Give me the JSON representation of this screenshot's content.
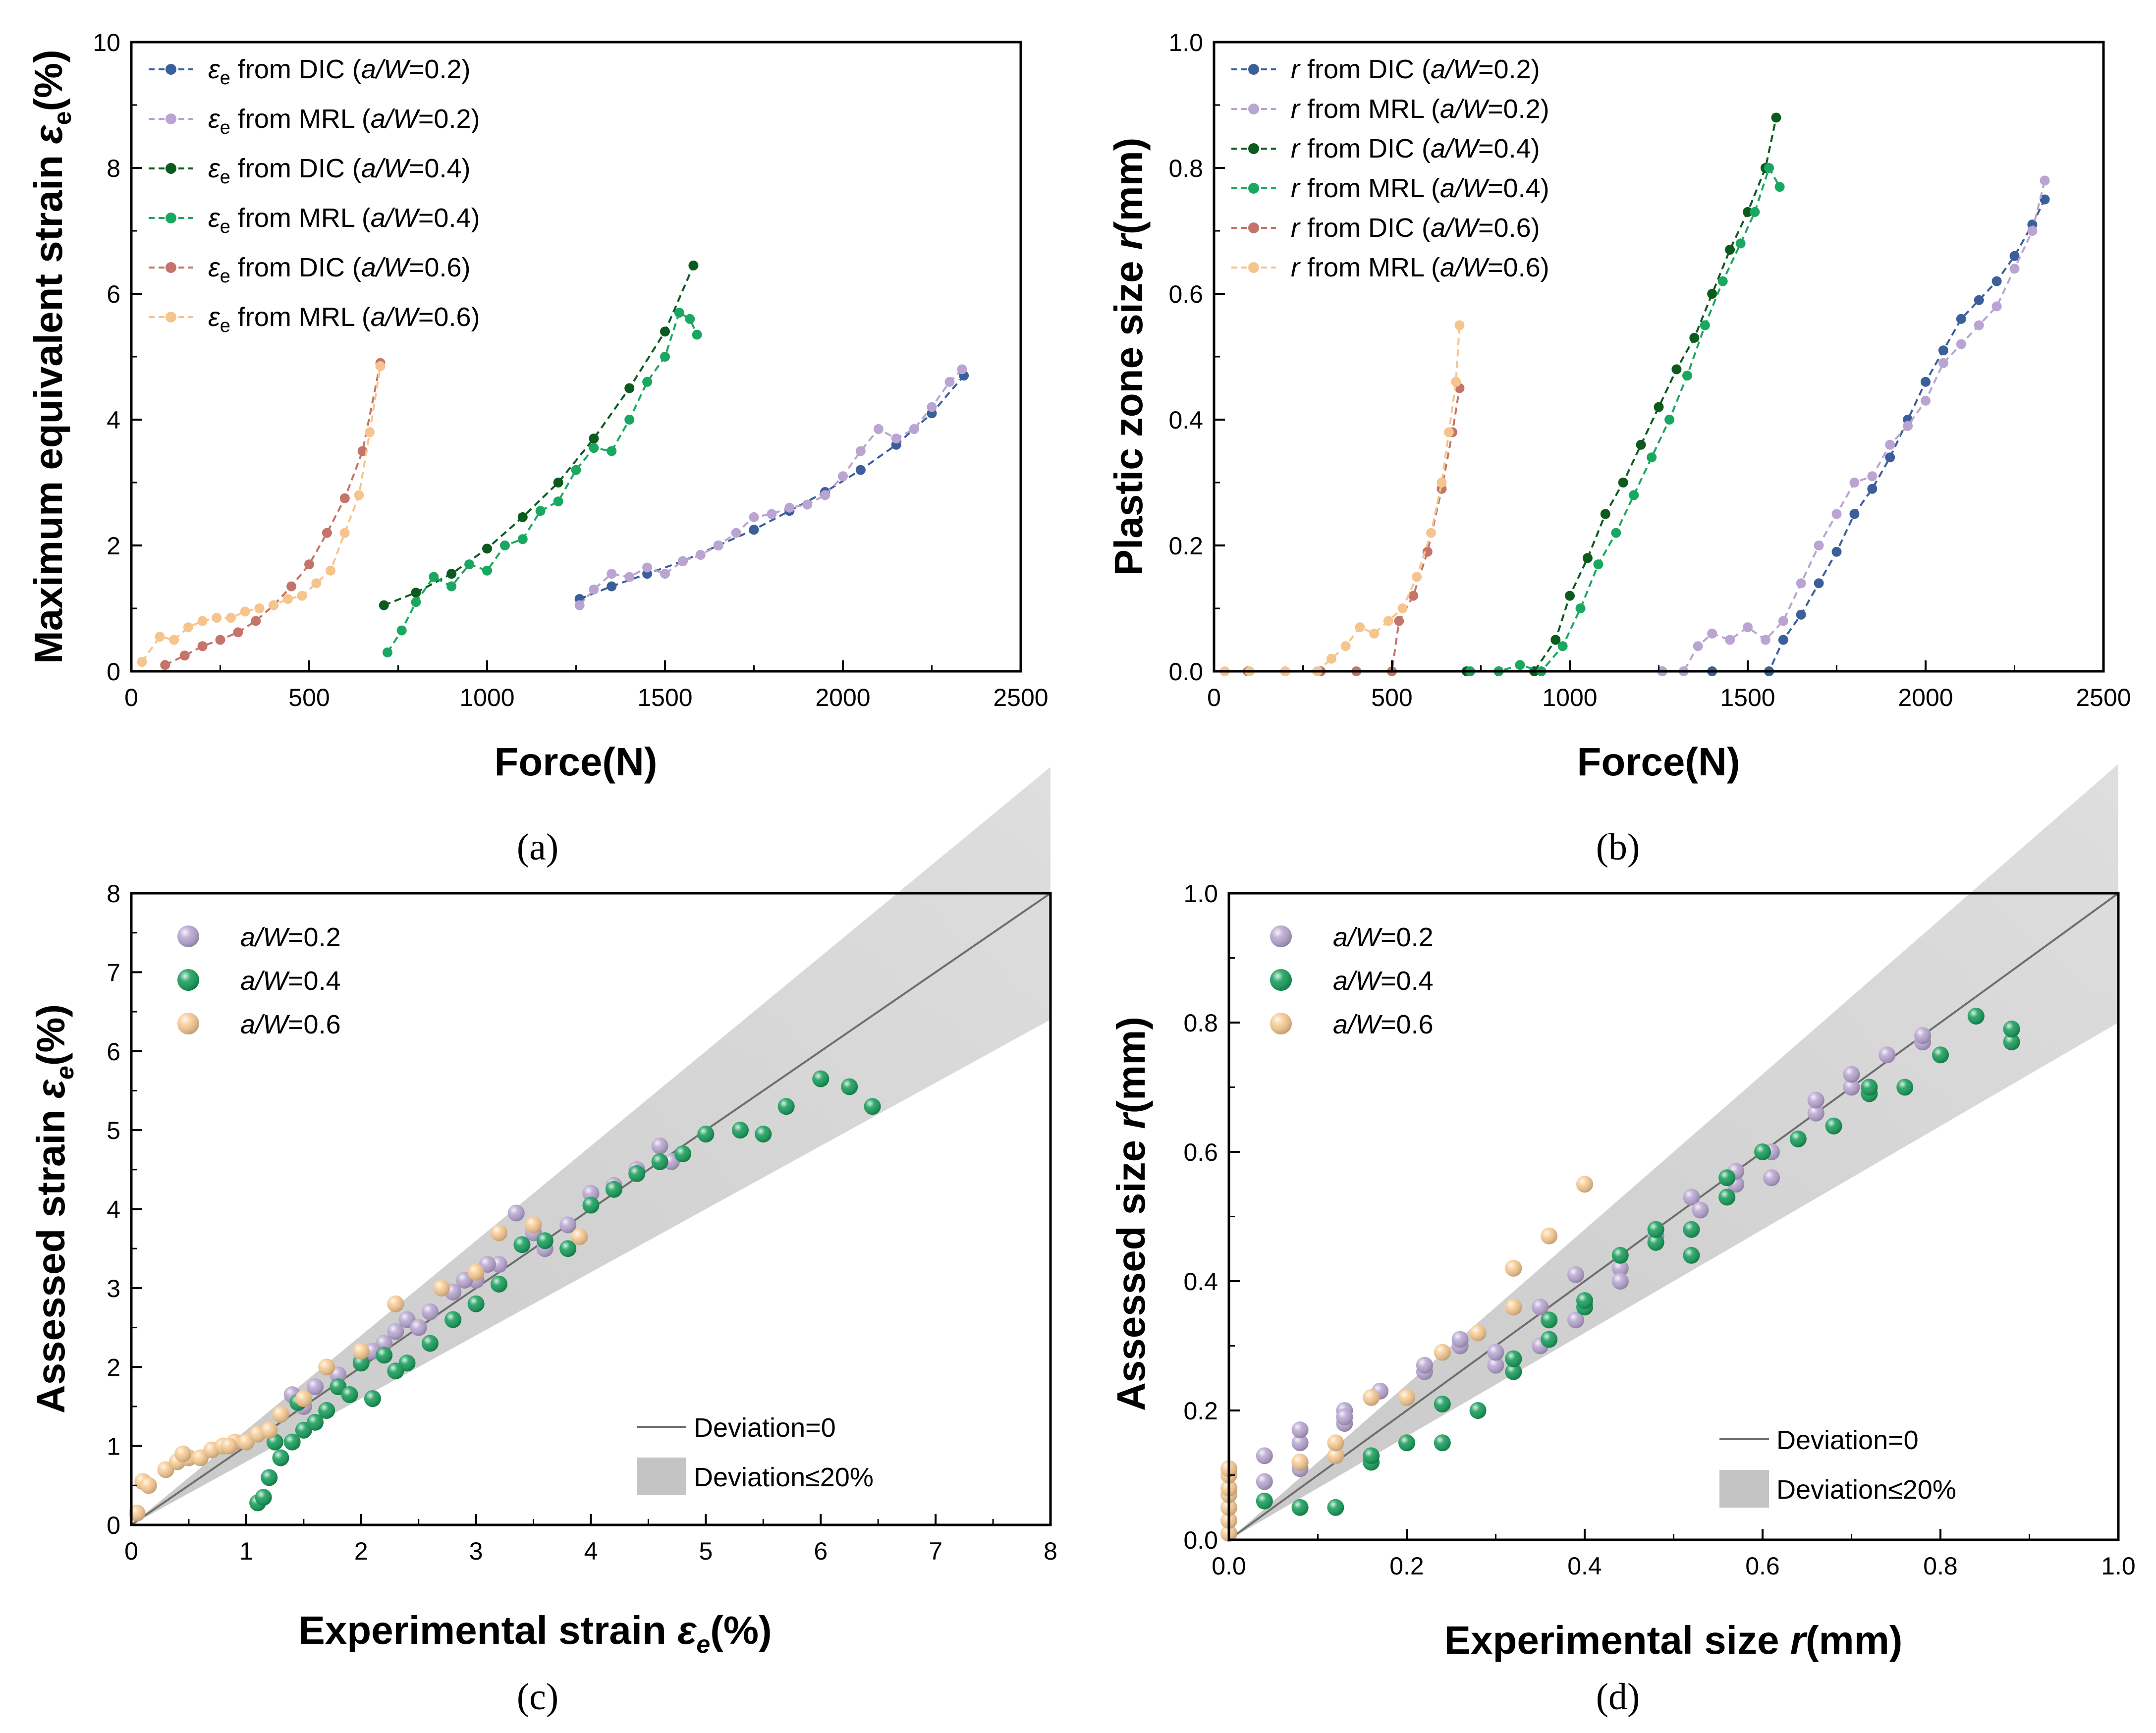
{
  "chart_data": [
    {
      "panel": "a",
      "type": "line",
      "caption": "(a)",
      "xlabel": "Force(N)",
      "ylabel_main": "Maximum equivalent strain ",
      "ylabel_symbol": "ε",
      "ylabel_sub": "e",
      "ylabel_unit": "(%)",
      "xlim": [
        0,
        2500
      ],
      "ylim": [
        0,
        10
      ],
      "xticks": [
        "0",
        "500",
        "1000",
        "1500",
        "2000",
        "2500"
      ],
      "yticks": [
        "0",
        "2",
        "4",
        "6",
        "8",
        "10"
      ],
      "legend_position": "top-left",
      "series": [
        {
          "symbol": "ε",
          "sub": "e",
          "text": " from DIC (",
          "italic": "a/W",
          "tail": "=0.2)",
          "color": "#3a5f9a",
          "x": [
            1260,
            1350,
            1450,
            1550,
            1650,
            1750,
            1850,
            1950,
            2050,
            2150,
            2250,
            2340
          ],
          "y": [
            1.15,
            1.35,
            1.55,
            1.75,
            2.0,
            2.25,
            2.55,
            2.85,
            3.2,
            3.6,
            4.1,
            4.7
          ]
        },
        {
          "symbol": "ε",
          "sub": "e",
          "text": " from MRL (",
          "italic": "a/W",
          "tail": "=0.2)",
          "color": "#b9a4d2",
          "x": [
            1260,
            1300,
            1350,
            1400,
            1450,
            1500,
            1550,
            1600,
            1650,
            1700,
            1750,
            1800,
            1850,
            1900,
            1950,
            2000,
            2050,
            2100,
            2150,
            2200,
            2250,
            2300,
            2335
          ],
          "y": [
            1.05,
            1.3,
            1.55,
            1.5,
            1.65,
            1.55,
            1.75,
            1.85,
            2.0,
            2.2,
            2.45,
            2.5,
            2.6,
            2.65,
            2.8,
            3.1,
            3.5,
            3.85,
            3.7,
            3.85,
            4.2,
            4.6,
            4.8
          ]
        },
        {
          "symbol": "ε",
          "sub": "e",
          "text": " from DIC (",
          "italic": "a/W",
          "tail": "=0.4)",
          "color": "#0d5a1e",
          "x": [
            710,
            800,
            900,
            1000,
            1100,
            1200,
            1300,
            1400,
            1500,
            1580
          ],
          "y": [
            1.05,
            1.25,
            1.55,
            1.95,
            2.45,
            3.0,
            3.7,
            4.5,
            5.4,
            6.45
          ]
        },
        {
          "symbol": "ε",
          "sub": "e",
          "text": " from MRL (",
          "italic": "a/W",
          "tail": "=0.4)",
          "color": "#1aa860",
          "x": [
            720,
            760,
            800,
            850,
            900,
            950,
            1000,
            1050,
            1100,
            1150,
            1200,
            1250,
            1300,
            1350,
            1400,
            1450,
            1500,
            1540,
            1570,
            1590
          ],
          "y": [
            0.3,
            0.65,
            1.1,
            1.5,
            1.35,
            1.7,
            1.6,
            2.0,
            2.1,
            2.55,
            2.7,
            3.2,
            3.55,
            3.5,
            4.0,
            4.6,
            5.0,
            5.7,
            5.6,
            5.35
          ]
        },
        {
          "symbol": "ε",
          "sub": "e",
          "text": " from DIC (",
          "italic": "a/W",
          "tail": "=0.6)",
          "color": "#c47468",
          "x": [
            95,
            150,
            200,
            250,
            300,
            350,
            400,
            450,
            500,
            550,
            600,
            650,
            700
          ],
          "y": [
            0.1,
            0.25,
            0.4,
            0.5,
            0.62,
            0.8,
            1.05,
            1.35,
            1.7,
            2.2,
            2.75,
            3.5,
            4.9
          ]
        },
        {
          "symbol": "ε",
          "sub": "e",
          "text": " from MRL (",
          "italic": "a/W",
          "tail": "=0.6)",
          "color": "#f6c48d",
          "x": [
            30,
            80,
            120,
            160,
            200,
            240,
            280,
            320,
            360,
            400,
            440,
            480,
            520,
            560,
            600,
            640,
            670,
            700
          ],
          "y": [
            0.15,
            0.55,
            0.5,
            0.7,
            0.8,
            0.85,
            0.85,
            0.95,
            1.0,
            1.05,
            1.15,
            1.2,
            1.4,
            1.6,
            2.2,
            2.8,
            3.8,
            4.85
          ]
        }
      ]
    },
    {
      "panel": "b",
      "type": "line",
      "caption": "(b)",
      "xlabel": "Force(N)",
      "ylabel_main": "Plastic zone size ",
      "ylabel_symbol": "r",
      "ylabel_sub": "",
      "ylabel_unit": "(mm)",
      "xlim": [
        0,
        2500
      ],
      "ylim": [
        0,
        1.0
      ],
      "xticks": [
        "0",
        "500",
        "1000",
        "1500",
        "2000",
        "2500"
      ],
      "yticks": [
        "0.0",
        "0.2",
        "0.4",
        "0.6",
        "0.8",
        "1.0"
      ],
      "legend_position": "top-left",
      "series": [
        {
          "symbol": "r",
          "sub": "",
          "text": " from DIC (",
          "italic": "a/W",
          "tail": "=0.2)",
          "color": "#3a5f9a",
          "x": [
            1260,
            1400,
            1560,
            1600,
            1650,
            1700,
            1750,
            1800,
            1850,
            1900,
            1950,
            2000,
            2050,
            2100,
            2150,
            2200,
            2250,
            2300,
            2335
          ],
          "y": [
            0.0,
            0.0,
            0.0,
            0.05,
            0.09,
            0.14,
            0.19,
            0.25,
            0.29,
            0.34,
            0.4,
            0.46,
            0.51,
            0.56,
            0.59,
            0.62,
            0.66,
            0.71,
            0.75
          ]
        },
        {
          "symbol": "r",
          "sub": "",
          "text": " from MRL (",
          "italic": "a/W",
          "tail": "=0.2)",
          "color": "#b9a4d2",
          "x": [
            1260,
            1320,
            1360,
            1400,
            1450,
            1500,
            1550,
            1600,
            1650,
            1700,
            1750,
            1800,
            1850,
            1900,
            1950,
            2000,
            2050,
            2100,
            2150,
            2200,
            2250,
            2300,
            2335
          ],
          "y": [
            0.0,
            0.0,
            0.04,
            0.06,
            0.05,
            0.07,
            0.05,
            0.08,
            0.14,
            0.2,
            0.25,
            0.3,
            0.31,
            0.36,
            0.39,
            0.43,
            0.49,
            0.52,
            0.55,
            0.58,
            0.64,
            0.7,
            0.78
          ]
        },
        {
          "symbol": "r",
          "sub": "",
          "text": " from DIC (",
          "italic": "a/W",
          "tail": "=0.4)",
          "color": "#0d5a1e",
          "x": [
            710,
            800,
            900,
            960,
            1000,
            1050,
            1100,
            1150,
            1200,
            1250,
            1300,
            1350,
            1400,
            1450,
            1500,
            1550,
            1580
          ],
          "y": [
            0.0,
            0.0,
            0.0,
            0.05,
            0.12,
            0.18,
            0.25,
            0.3,
            0.36,
            0.42,
            0.48,
            0.53,
            0.6,
            0.67,
            0.73,
            0.8,
            0.88
          ]
        },
        {
          "symbol": "r",
          "sub": "",
          "text": " from MRL (",
          "italic": "a/W",
          "tail": "=0.4)",
          "color": "#1aa860",
          "x": [
            720,
            800,
            860,
            920,
            980,
            1030,
            1080,
            1130,
            1180,
            1230,
            1280,
            1330,
            1380,
            1430,
            1480,
            1520,
            1560,
            1590
          ],
          "y": [
            0.0,
            0.0,
            0.01,
            0.0,
            0.04,
            0.1,
            0.17,
            0.22,
            0.28,
            0.34,
            0.4,
            0.47,
            0.55,
            0.62,
            0.68,
            0.73,
            0.8,
            0.77
          ]
        },
        {
          "symbol": "r",
          "sub": "",
          "text": " from DIC (",
          "italic": "a/W",
          "tail": "=0.6)",
          "color": "#c47468",
          "x": [
            95,
            200,
            300,
            400,
            500,
            520,
            560,
            600,
            640,
            670,
            690
          ],
          "y": [
            0.0,
            0.0,
            0.0,
            0.0,
            0.0,
            0.08,
            0.12,
            0.19,
            0.29,
            0.38,
            0.45
          ]
        },
        {
          "symbol": "r",
          "sub": "",
          "text": " from MRL (",
          "italic": "a/W",
          "tail": "=0.6)",
          "color": "#f6c48d",
          "x": [
            30,
            100,
            200,
            290,
            330,
            370,
            410,
            450,
            490,
            530,
            570,
            610,
            640,
            660,
            680,
            690
          ],
          "y": [
            0.0,
            0.0,
            0.0,
            0.0,
            0.02,
            0.04,
            0.07,
            0.06,
            0.08,
            0.1,
            0.15,
            0.22,
            0.3,
            0.38,
            0.46,
            0.55
          ]
        }
      ]
    },
    {
      "panel": "c",
      "type": "scatter",
      "caption": "(c)",
      "xlabel_main": "Experimental strain ",
      "xlabel_symbol": "ε",
      "xlabel_sub": "e",
      "xlabel_unit": "(%)",
      "ylabel_main": "Assessed strain ",
      "ylabel_symbol": "ε",
      "ylabel_sub": "e",
      "ylabel_unit": "(%)",
      "xlim": [
        0,
        8
      ],
      "ylim": [
        0,
        8
      ],
      "xticks": [
        "0",
        "1",
        "2",
        "3",
        "4",
        "5",
        "6",
        "7",
        "8"
      ],
      "yticks": [
        "0",
        "1",
        "2",
        "3",
        "4",
        "5",
        "6",
        "7",
        "8"
      ],
      "legend_position": "top-left",
      "band_legend_position": "bottom-right",
      "reference_line_label": "Deviation=0",
      "band_label": "Deviation≤20%",
      "band_fraction": 0.2,
      "series": [
        {
          "italic": "a/W",
          "tail": "=0.2",
          "color": "#b6a3d0",
          "x": [
            1.4,
            1.6,
            1.8,
            2.0,
            2.2,
            2.4,
            2.6,
            2.8,
            3.0,
            3.2,
            3.35,
            3.5,
            3.8,
            4.0,
            4.2,
            4.4,
            4.6,
            4.7,
            1.5,
            2.1,
            2.3,
            2.5,
            2.9,
            3.1,
            3.6
          ],
          "y": [
            1.65,
            1.75,
            1.9,
            2.1,
            2.3,
            2.6,
            2.7,
            2.95,
            3.1,
            3.3,
            3.95,
            3.7,
            3.8,
            4.2,
            4.3,
            4.5,
            4.8,
            4.6,
            1.5,
            2.2,
            2.45,
            2.5,
            3.1,
            3.3,
            3.5
          ]
        },
        {
          "italic": "a/W",
          "tail": "=0.4",
          "color": "#0f9a55",
          "x": [
            1.1,
            1.15,
            1.2,
            1.3,
            1.4,
            1.5,
            1.6,
            1.7,
            1.8,
            1.9,
            2.0,
            2.1,
            2.2,
            2.4,
            2.6,
            2.8,
            3.0,
            3.2,
            3.4,
            3.6,
            3.8,
            4.0,
            4.2,
            4.4,
            4.6,
            4.8,
            5.0,
            5.3,
            5.5,
            5.7,
            6.0,
            6.25,
            6.45,
            1.25,
            1.45,
            2.3
          ],
          "y": [
            0.28,
            0.35,
            0.6,
            0.85,
            1.05,
            1.2,
            1.3,
            1.45,
            1.75,
            1.65,
            2.05,
            1.6,
            2.15,
            2.05,
            2.3,
            2.6,
            2.8,
            3.05,
            3.55,
            3.6,
            3.5,
            4.05,
            4.25,
            4.45,
            4.6,
            4.7,
            4.95,
            5.0,
            4.95,
            5.3,
            5.65,
            5.55,
            5.3,
            1.05,
            1.55,
            1.95
          ]
        },
        {
          "italic": "a/W",
          "tail": "=0.6",
          "color": "#f8c98f",
          "x": [
            0.05,
            0.1,
            0.15,
            0.3,
            0.4,
            0.5,
            0.6,
            0.7,
            0.8,
            0.9,
            1.0,
            1.1,
            1.2,
            1.3,
            1.5,
            1.7,
            2.0,
            2.3,
            2.7,
            3.0,
            3.2,
            3.5,
            3.9,
            0.45,
            0.85
          ],
          "y": [
            0.15,
            0.55,
            0.5,
            0.7,
            0.8,
            0.85,
            0.85,
            0.95,
            1.0,
            1.05,
            1.05,
            1.15,
            1.2,
            1.4,
            1.6,
            2.0,
            2.2,
            2.8,
            3.0,
            3.2,
            3.7,
            3.8,
            3.65,
            0.9,
            1.0
          ]
        }
      ]
    },
    {
      "panel": "d",
      "type": "scatter",
      "caption": "(d)",
      "xlabel_main": "Experimental size ",
      "xlabel_symbol": "r",
      "xlabel_sub": "",
      "xlabel_unit": "(mm)",
      "ylabel_main": "Assessed size ",
      "ylabel_symbol": "r",
      "ylabel_sub": "",
      "ylabel_unit": "(mm)",
      "xlim": [
        0,
        1.0
      ],
      "ylim": [
        0,
        1.0
      ],
      "xticks": [
        "0.0",
        "0.2",
        "0.4",
        "0.6",
        "0.8",
        "1.0"
      ],
      "yticks": [
        "0.0",
        "0.2",
        "0.4",
        "0.6",
        "0.8",
        "1.0"
      ],
      "legend_position": "top-left",
      "band_legend_position": "bottom-right",
      "reference_line_label": "Deviation=0",
      "band_label": "Deviation≤20%",
      "band_fraction": 0.2,
      "series": [
        {
          "italic": "a/W",
          "tail": "=0.2",
          "color": "#b6a3d0",
          "x": [
            0.04,
            0.04,
            0.08,
            0.08,
            0.13,
            0.13,
            0.17,
            0.22,
            0.26,
            0.26,
            0.3,
            0.35,
            0.35,
            0.39,
            0.39,
            0.44,
            0.48,
            0.52,
            0.53,
            0.57,
            0.61,
            0.61,
            0.66,
            0.66,
            0.7,
            0.7,
            0.74,
            0.78,
            0.78,
            0.08,
            0.13,
            0.22,
            0.3,
            0.44,
            0.57
          ],
          "y": [
            0.09,
            0.13,
            0.15,
            0.17,
            0.18,
            0.2,
            0.23,
            0.26,
            0.3,
            0.31,
            0.27,
            0.3,
            0.36,
            0.41,
            0.34,
            0.42,
            0.47,
            0.53,
            0.51,
            0.55,
            0.56,
            0.6,
            0.66,
            0.68,
            0.7,
            0.72,
            0.75,
            0.77,
            0.78,
            0.11,
            0.19,
            0.27,
            0.29,
            0.4,
            0.57
          ]
        },
        {
          "italic": "a/W",
          "tail": "=0.4",
          "color": "#0f9a55",
          "x": [
            0.04,
            0.08,
            0.12,
            0.16,
            0.2,
            0.24,
            0.24,
            0.28,
            0.32,
            0.32,
            0.36,
            0.36,
            0.4,
            0.4,
            0.44,
            0.48,
            0.48,
            0.52,
            0.52,
            0.56,
            0.56,
            0.6,
            0.64,
            0.68,
            0.72,
            0.72,
            0.76,
            0.8,
            0.84,
            0.88,
            0.88,
            0.16,
            0.08
          ],
          "y": [
            0.06,
            0.05,
            0.05,
            0.12,
            0.15,
            0.15,
            0.21,
            0.2,
            0.26,
            0.28,
            0.31,
            0.34,
            0.36,
            0.37,
            0.44,
            0.46,
            0.48,
            0.44,
            0.48,
            0.53,
            0.56,
            0.6,
            0.62,
            0.64,
            0.69,
            0.7,
            0.7,
            0.75,
            0.81,
            0.77,
            0.79,
            0.13,
            0.12
          ]
        },
        {
          "italic": "a/W",
          "tail": "=0.6",
          "color": "#f8c98f",
          "x": [
            0.0,
            0.0,
            0.0,
            0.0,
            0.0,
            0.0,
            0.0,
            0.08,
            0.12,
            0.12,
            0.16,
            0.2,
            0.24,
            0.28,
            0.32,
            0.32,
            0.36,
            0.4
          ],
          "y": [
            0.01,
            0.03,
            0.05,
            0.07,
            0.08,
            0.1,
            0.11,
            0.12,
            0.13,
            0.15,
            0.22,
            0.22,
            0.29,
            0.32,
            0.36,
            0.42,
            0.47,
            0.55
          ]
        }
      ]
    }
  ]
}
